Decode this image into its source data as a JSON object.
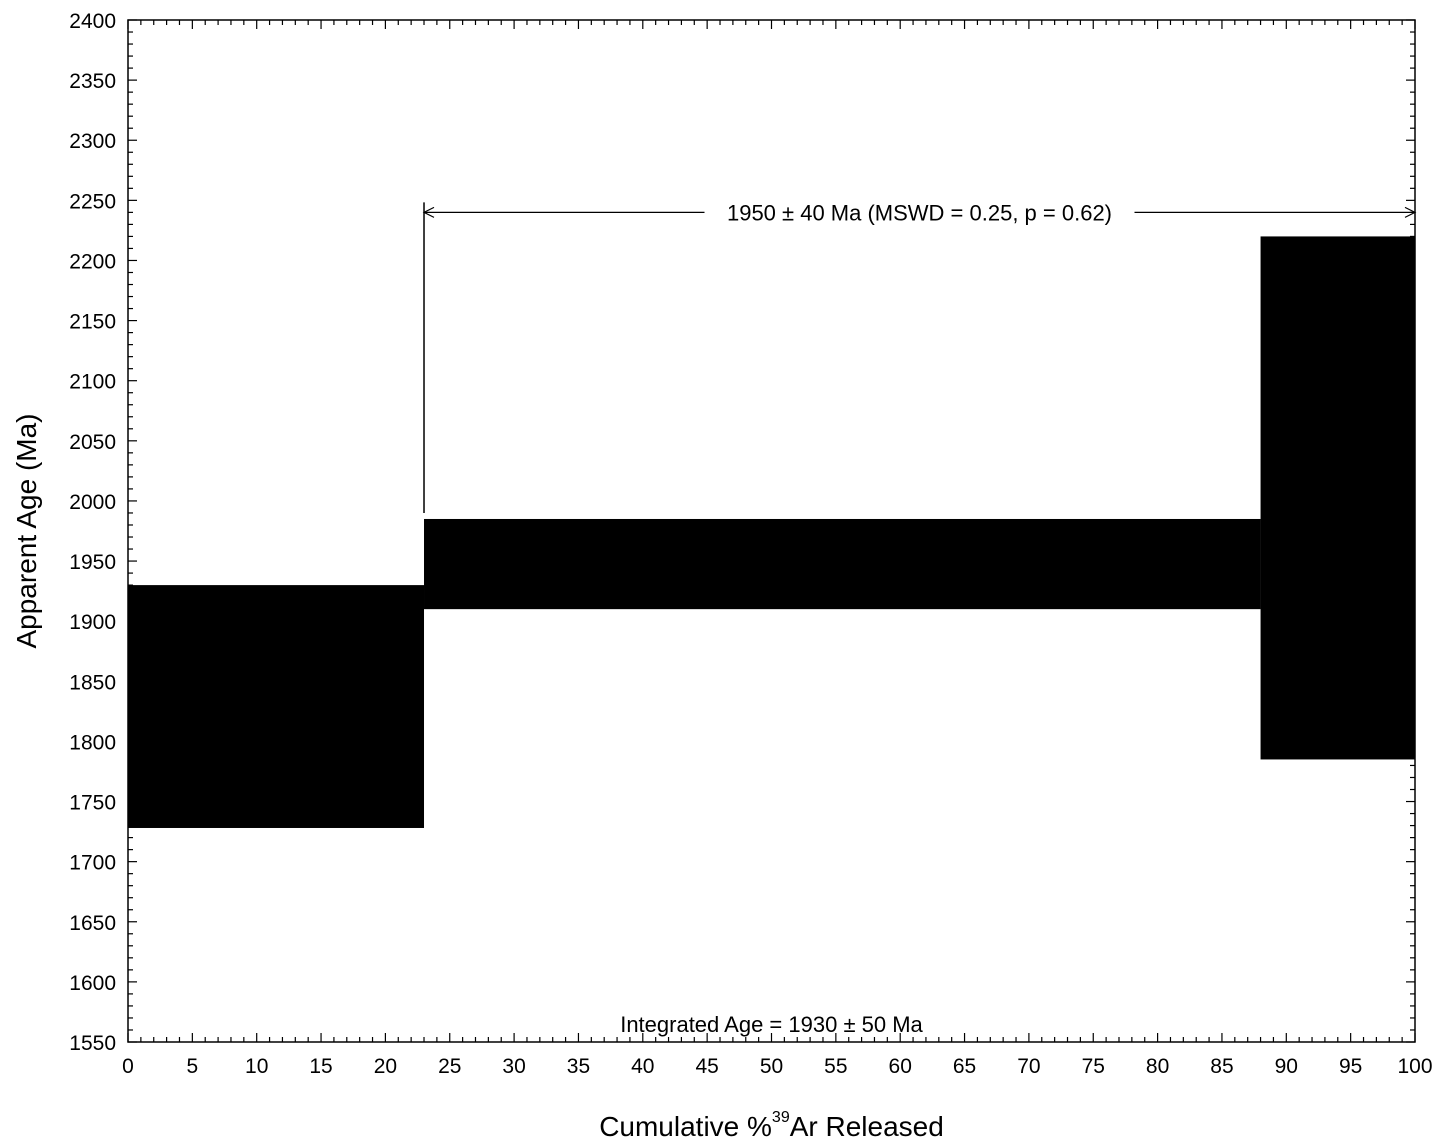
{
  "chart_data": {
    "type": "step",
    "title": "",
    "xlabel": "Cumulative %",
    "xlabel_superscript": "39",
    "xlabel_suffix": "Ar Released",
    "ylabel": "Apparent Age (Ma)",
    "xlim": [
      0,
      100
    ],
    "ylim": [
      1550,
      2400
    ],
    "x_ticks": [
      "0",
      "5",
      "10",
      "15",
      "20",
      "25",
      "30",
      "35",
      "40",
      "45",
      "50",
      "55",
      "60",
      "65",
      "70",
      "75",
      "80",
      "85",
      "90",
      "95",
      "100"
    ],
    "y_ticks": [
      "1550",
      "1600",
      "1650",
      "1700",
      "1750",
      "1800",
      "1850",
      "1900",
      "1950",
      "2000",
      "2050",
      "2100",
      "2150",
      "2200",
      "2250",
      "2300",
      "2350",
      "2400"
    ],
    "steps": [
      {
        "x_start": 0,
        "x_end": 23,
        "age_low": 1728,
        "age_high": 1930
      },
      {
        "x_start": 23,
        "x_end": 88,
        "age_low": 1910,
        "age_high": 1985
      },
      {
        "x_start": 88,
        "x_end": 100,
        "age_low": 1785,
        "age_high": 2220
      }
    ],
    "plateau": {
      "label": "1950 ± 40 Ma (MSWD = 0.25, p = 0.62)",
      "x_start": 23,
      "x_end": 100,
      "age": 2240,
      "bar_bottom_age": 1990
    },
    "integrated_age_label": "Integrated Age = 1930 ± 50 Ma",
    "fill_color": "#000000",
    "grid": false
  }
}
